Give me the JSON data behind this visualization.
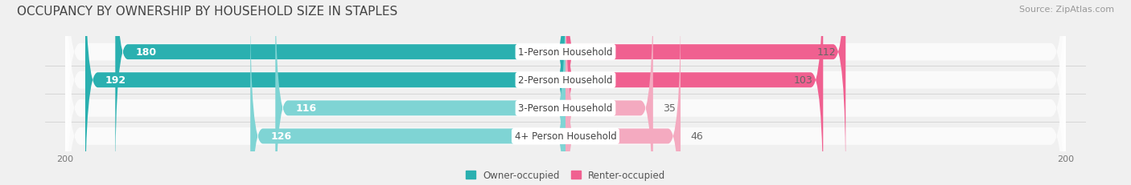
{
  "title": "OCCUPANCY BY OWNERSHIP BY HOUSEHOLD SIZE IN STAPLES",
  "source": "Source: ZipAtlas.com",
  "categories": [
    "1-Person Household",
    "2-Person Household",
    "3-Person Household",
    "4+ Person Household"
  ],
  "owner_values": [
    180,
    192,
    116,
    126
  ],
  "renter_values": [
    112,
    103,
    35,
    46
  ],
  "owner_color_dark": "#2ab0b0",
  "owner_color_light": "#7fd4d4",
  "renter_color_dark": "#f06090",
  "renter_color_light": "#f4aac0",
  "owner_label": "Owner-occupied",
  "renter_label": "Renter-occupied",
  "axis_max": 200,
  "bg_color": "#f0f0f0",
  "bar_bg_color": "#e0e0e0",
  "title_fontsize": 11,
  "source_fontsize": 8,
  "label_fontsize": 9,
  "bar_height": 0.62,
  "center_label_color": "#444444",
  "row_bg_colors": [
    "#e8e8e8",
    "#e8e8e8",
    "#e8e8e8",
    "#e8e8e8"
  ]
}
